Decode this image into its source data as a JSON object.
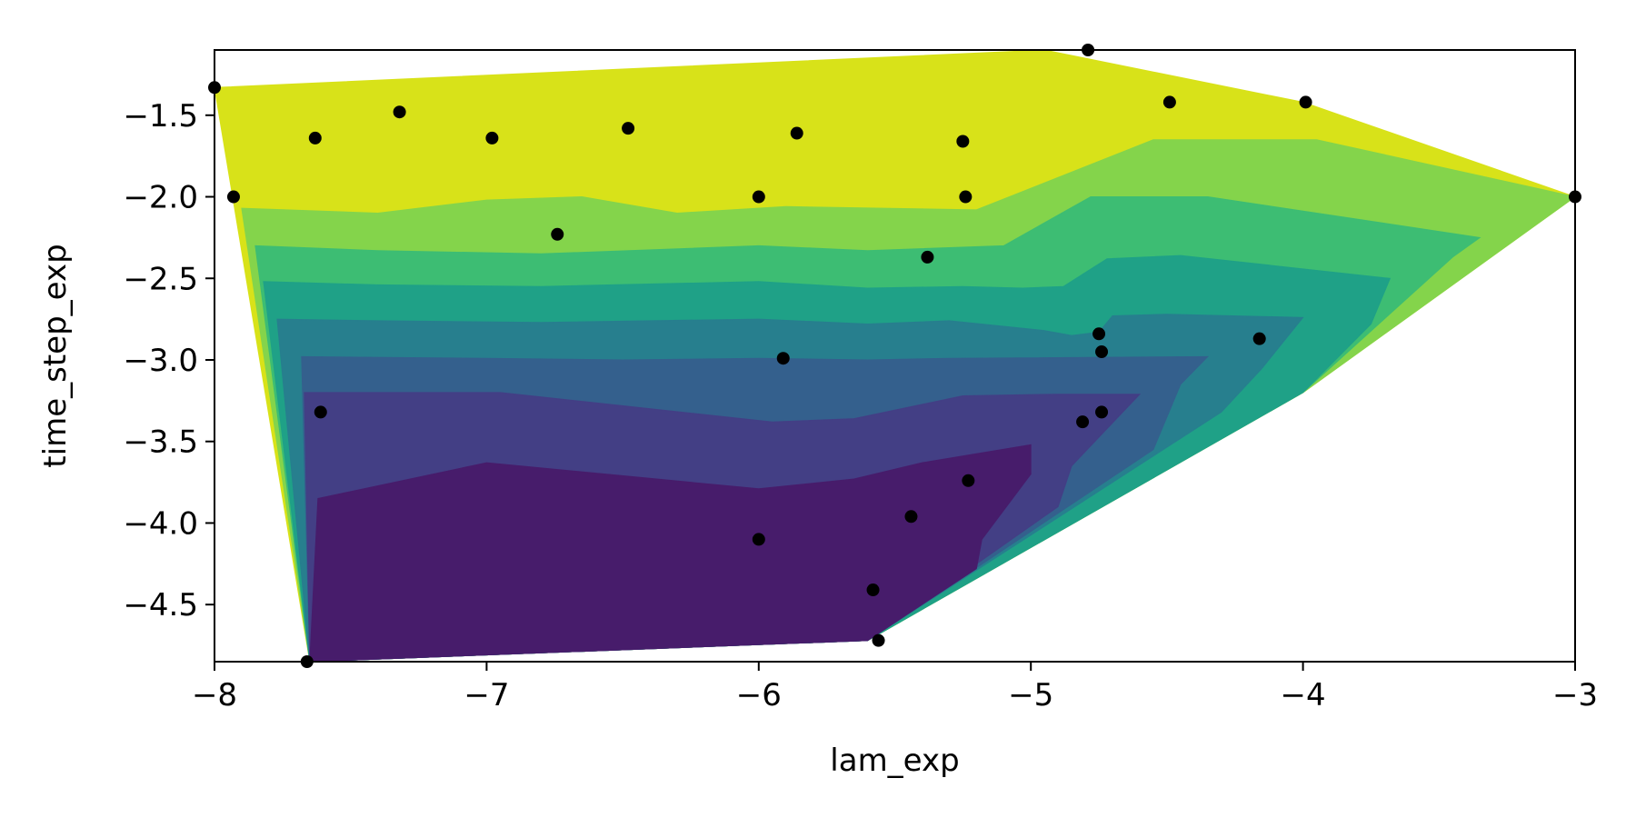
{
  "chart_data": {
    "type": "contour",
    "title": "",
    "xlabel": "lam_exp",
    "ylabel": "time_step_exp",
    "xlim": [
      -8,
      -3
    ],
    "ylim": [
      -4.85,
      -1.1
    ],
    "x_ticks": [
      -8,
      -7,
      -6,
      -5,
      -4,
      -3
    ],
    "x_tick_labels": [
      "−8",
      "−7",
      "−6",
      "−5",
      "−4",
      "−3"
    ],
    "y_ticks": [
      -1.5,
      -2.0,
      -2.5,
      -3.0,
      -3.5,
      -4.0,
      -4.5
    ],
    "y_tick_labels": [
      "−1.5",
      "−2.0",
      "−2.5",
      "−3.0",
      "−3.5",
      "−4.0",
      "−4.5"
    ],
    "colormap": "viridis",
    "level_colors": [
      "#471c6b",
      "#433f85",
      "#34608d",
      "#277f8e",
      "#1fa187",
      "#3dbd73",
      "#84d44b",
      "#d8e219"
    ],
    "point_color": "#000000",
    "contour_bands": [
      {
        "fill": "#d8e219",
        "polygon": [
          [
            -8,
            -1.33
          ],
          [
            -4.95,
            -1.1
          ],
          [
            -4.0,
            -1.42
          ],
          [
            -3.0,
            -2.0
          ],
          [
            -4.0,
            -3.2
          ],
          [
            -5.6,
            -4.72
          ],
          [
            -7.65,
            -4.85
          ]
        ]
      },
      {
        "fill": "#84d44b",
        "polygon": [
          [
            -7.9,
            -2.07
          ],
          [
            -7.4,
            -2.1
          ],
          [
            -7.0,
            -2.02
          ],
          [
            -6.65,
            -2.0
          ],
          [
            -6.3,
            -2.1
          ],
          [
            -5.9,
            -2.06
          ],
          [
            -5.2,
            -2.08
          ],
          [
            -4.55,
            -1.65
          ],
          [
            -3.95,
            -1.65
          ],
          [
            -3.0,
            -2.0
          ],
          [
            -4.0,
            -3.2
          ],
          [
            -5.6,
            -4.72
          ],
          [
            -7.65,
            -4.85
          ]
        ]
      },
      {
        "fill": "#3dbd73",
        "polygon": [
          [
            -7.85,
            -2.3
          ],
          [
            -7.4,
            -2.33
          ],
          [
            -6.8,
            -2.35
          ],
          [
            -6.0,
            -2.3
          ],
          [
            -5.6,
            -2.33
          ],
          [
            -5.1,
            -2.3
          ],
          [
            -4.78,
            -2.0
          ],
          [
            -4.35,
            -2.0
          ],
          [
            -3.35,
            -2.25
          ],
          [
            -3.45,
            -2.37
          ],
          [
            -4.0,
            -3.2
          ],
          [
            -5.6,
            -4.72
          ],
          [
            -7.65,
            -4.85
          ]
        ]
      },
      {
        "fill": "#1fa187",
        "polygon": [
          [
            -7.82,
            -2.52
          ],
          [
            -7.4,
            -2.54
          ],
          [
            -6.8,
            -2.55
          ],
          [
            -6.0,
            -2.52
          ],
          [
            -5.6,
            -2.56
          ],
          [
            -5.25,
            -2.55
          ],
          [
            -5.03,
            -2.56
          ],
          [
            -4.88,
            -2.55
          ],
          [
            -4.72,
            -2.38
          ],
          [
            -4.45,
            -2.36
          ],
          [
            -3.68,
            -2.5
          ],
          [
            -3.75,
            -2.78
          ],
          [
            -4.0,
            -3.2
          ],
          [
            -5.6,
            -4.72
          ],
          [
            -7.65,
            -4.85
          ]
        ]
      },
      {
        "fill": "#277f8e",
        "polygon": [
          [
            -7.77,
            -2.75
          ],
          [
            -7.4,
            -2.76
          ],
          [
            -6.8,
            -2.77
          ],
          [
            -6.0,
            -2.75
          ],
          [
            -5.6,
            -2.78
          ],
          [
            -5.3,
            -2.76
          ],
          [
            -4.95,
            -2.82
          ],
          [
            -4.85,
            -2.85
          ],
          [
            -4.75,
            -2.83
          ],
          [
            -4.7,
            -2.73
          ],
          [
            -4.5,
            -2.72
          ],
          [
            -4.0,
            -2.74
          ],
          [
            -4.15,
            -3.05
          ],
          [
            -4.3,
            -3.32
          ],
          [
            -5.6,
            -4.72
          ],
          [
            -7.65,
            -4.85
          ]
        ]
      },
      {
        "fill": "#34608d",
        "polygon": [
          [
            -7.68,
            -2.98
          ],
          [
            -7.0,
            -2.99
          ],
          [
            -6.5,
            -3.0
          ],
          [
            -6.0,
            -2.99
          ],
          [
            -5.6,
            -3.0
          ],
          [
            -5.3,
            -2.99
          ],
          [
            -4.35,
            -2.98
          ],
          [
            -4.45,
            -3.15
          ],
          [
            -4.55,
            -3.55
          ],
          [
            -5.6,
            -4.72
          ],
          [
            -7.65,
            -4.85
          ]
        ]
      },
      {
        "fill": "#433f85",
        "polygon": [
          [
            -7.67,
            -3.2
          ],
          [
            -6.95,
            -3.2
          ],
          [
            -5.95,
            -3.38
          ],
          [
            -5.65,
            -3.36
          ],
          [
            -5.25,
            -3.22
          ],
          [
            -4.9,
            -3.21
          ],
          [
            -4.6,
            -3.21
          ],
          [
            -4.85,
            -3.65
          ],
          [
            -4.9,
            -3.9
          ],
          [
            -5.6,
            -4.72
          ],
          [
            -7.65,
            -4.85
          ]
        ]
      },
      {
        "fill": "#471c6b",
        "polygon": [
          [
            -7.62,
            -3.85
          ],
          [
            -7.0,
            -3.63
          ],
          [
            -6.0,
            -3.79
          ],
          [
            -5.65,
            -3.73
          ],
          [
            -5.4,
            -3.63
          ],
          [
            -5.0,
            -3.52
          ],
          [
            -5.0,
            -3.7
          ],
          [
            -5.18,
            -4.1
          ],
          [
            -5.2,
            -4.28
          ],
          [
            -5.6,
            -4.72
          ],
          [
            -7.65,
            -4.85
          ]
        ]
      }
    ],
    "points": [
      {
        "x": -8.0,
        "y": -1.33
      },
      {
        "x": -7.93,
        "y": -2.0
      },
      {
        "x": -7.63,
        "y": -1.64
      },
      {
        "x": -7.32,
        "y": -1.48
      },
      {
        "x": -6.98,
        "y": -1.64
      },
      {
        "x": -6.48,
        "y": -1.58
      },
      {
        "x": -6.0,
        "y": -2.0
      },
      {
        "x": -5.86,
        "y": -1.61
      },
      {
        "x": -6.74,
        "y": -2.23
      },
      {
        "x": -5.25,
        "y": -1.66
      },
      {
        "x": -5.24,
        "y": -2.0
      },
      {
        "x": -4.79,
        "y": -1.1
      },
      {
        "x": -4.49,
        "y": -1.42
      },
      {
        "x": -3.99,
        "y": -1.42
      },
      {
        "x": -3.0,
        "y": -2.0
      },
      {
        "x": -5.38,
        "y": -2.37
      },
      {
        "x": -4.75,
        "y": -2.84
      },
      {
        "x": -4.74,
        "y": -2.95
      },
      {
        "x": -4.16,
        "y": -2.87
      },
      {
        "x": -5.91,
        "y": -2.99
      },
      {
        "x": -7.61,
        "y": -3.32
      },
      {
        "x": -4.81,
        "y": -3.38
      },
      {
        "x": -4.74,
        "y": -3.32
      },
      {
        "x": -5.23,
        "y": -3.74
      },
      {
        "x": -5.44,
        "y": -3.96
      },
      {
        "x": -6.0,
        "y": -4.1
      },
      {
        "x": -5.58,
        "y": -4.41
      },
      {
        "x": -5.56,
        "y": -4.72
      },
      {
        "x": -7.66,
        "y": -4.85
      }
    ]
  }
}
